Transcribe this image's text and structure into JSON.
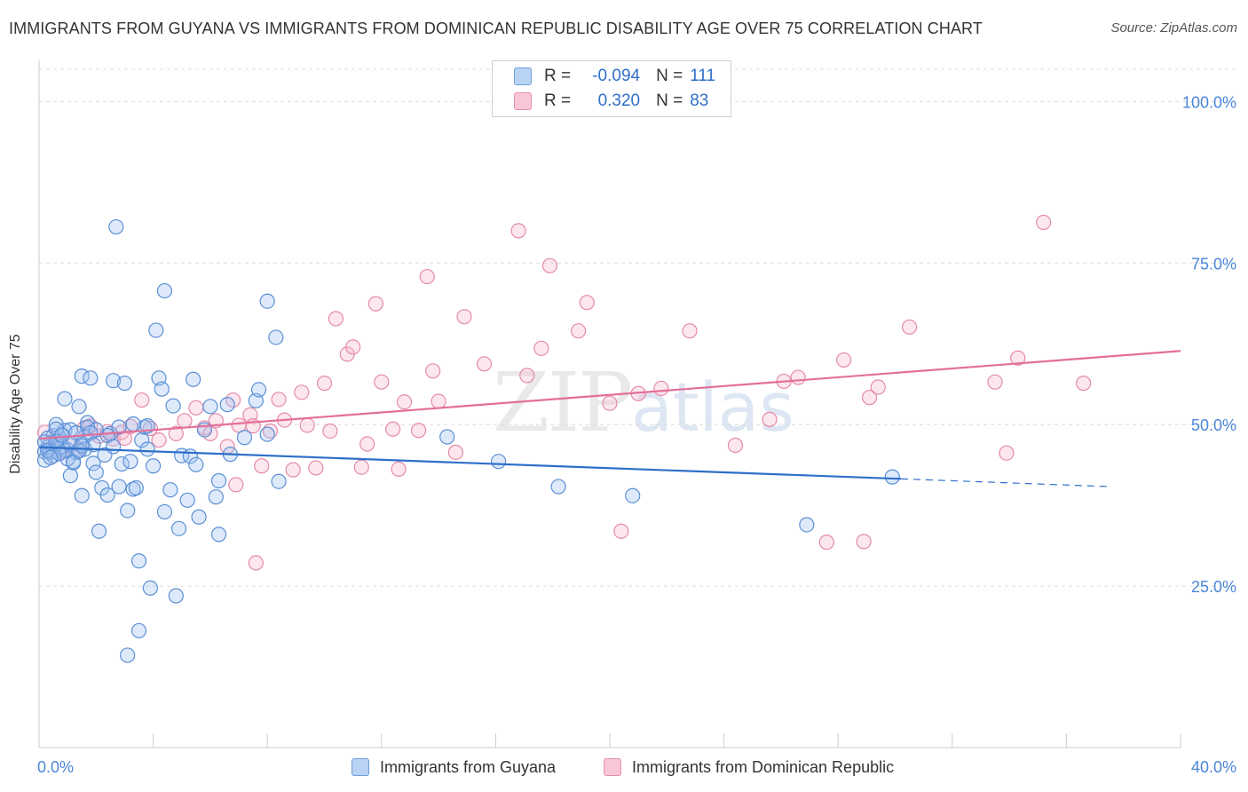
{
  "header": {
    "title": "IMMIGRANTS FROM GUYANA VS IMMIGRANTS FROM DOMINICAN REPUBLIC DISABILITY AGE OVER 75 CORRELATION CHART",
    "source": "Source: ZipAtlas.com"
  },
  "watermark": {
    "part1": "ZIP",
    "part2": "atlas"
  },
  "legend": {
    "rows": [
      {
        "r_label": "R =",
        "r_value": "-0.094",
        "n_label": "N =",
        "n_value": "111",
        "color": "#4a86d9"
      },
      {
        "r_label": "R =",
        "r_value": "0.320",
        "n_label": "N =",
        "n_value": "83",
        "color": "#e36f9a"
      }
    ]
  },
  "bottom_legend": {
    "series1": "Immigrants from Guyana",
    "series2": "Immigrants from Dominican Republic"
  },
  "chart_data": {
    "type": "scatter",
    "title": "IMMIGRANTS FROM GUYANA VS IMMIGRANTS FROM DOMINICAN REPUBLIC DISABILITY AGE OVER 75 CORRELATION CHART",
    "ylabel": "Disability Age Over 75",
    "xlabel": "",
    "xlim": [
      0,
      40
    ],
    "ylim": [
      0,
      105
    ],
    "x_tick_labels": [
      "0.0%",
      "40.0%"
    ],
    "y_ticks": [
      25,
      50,
      75,
      100
    ],
    "y_tick_labels": [
      "25.0%",
      "50.0%",
      "75.0%",
      "100.0%"
    ],
    "grid": "horizontal dashed",
    "colors": {
      "guyana": "#4a86d9",
      "dominican": "#e36f9a"
    },
    "series": [
      {
        "name": "Immigrants from Guyana",
        "trend": {
          "x0": 0,
          "y0": 46.5,
          "x1": 30.2,
          "y1": 41.6,
          "dash_to_x": 37.5,
          "dash_to_y": 40.4
        },
        "points": [
          [
            0.2,
            45.8
          ],
          [
            0.2,
            44.5
          ],
          [
            0.3,
            46.5
          ],
          [
            0.4,
            47.2
          ],
          [
            0.5,
            45.8
          ],
          [
            0.5,
            48.3
          ],
          [
            0.6,
            46.9
          ],
          [
            0.6,
            50.0
          ],
          [
            0.7,
            47.5
          ],
          [
            0.8,
            48.2
          ],
          [
            0.9,
            54.0
          ],
          [
            0.9,
            49.1
          ],
          [
            1.0,
            46.1
          ],
          [
            1.1,
            42.1
          ],
          [
            1.1,
            49.2
          ],
          [
            1.2,
            44.3
          ],
          [
            1.3,
            45.7
          ],
          [
            1.4,
            52.8
          ],
          [
            1.5,
            47.0
          ],
          [
            1.5,
            57.5
          ],
          [
            1.6,
            48.1
          ],
          [
            1.7,
            50.3
          ],
          [
            1.7,
            49.6
          ],
          [
            1.8,
            57.2
          ],
          [
            1.9,
            44.0
          ],
          [
            2.0,
            42.6
          ],
          [
            2.1,
            33.5
          ],
          [
            2.2,
            40.2
          ],
          [
            2.4,
            39.1
          ],
          [
            2.5,
            48.6
          ],
          [
            2.6,
            56.8
          ],
          [
            2.7,
            80.6
          ],
          [
            2.8,
            49.6
          ],
          [
            2.8,
            40.4
          ],
          [
            2.9,
            43.9
          ],
          [
            3.0,
            56.4
          ],
          [
            3.1,
            36.7
          ],
          [
            3.2,
            44.3
          ],
          [
            3.3,
            40.0
          ],
          [
            3.4,
            40.2
          ],
          [
            3.5,
            28.9
          ],
          [
            3.5,
            18.1
          ],
          [
            3.6,
            47.6
          ],
          [
            3.7,
            49.6
          ],
          [
            3.8,
            46.2
          ],
          [
            3.9,
            24.7
          ],
          [
            4.0,
            43.6
          ],
          [
            4.1,
            64.6
          ],
          [
            4.2,
            57.2
          ],
          [
            4.3,
            55.5
          ],
          [
            4.4,
            36.5
          ],
          [
            4.4,
            70.7
          ],
          [
            4.6,
            39.9
          ],
          [
            4.7,
            52.9
          ],
          [
            4.8,
            23.5
          ],
          [
            4.9,
            33.9
          ],
          [
            5.0,
            45.2
          ],
          [
            5.2,
            38.3
          ],
          [
            5.3,
            45.1
          ],
          [
            5.4,
            57.0
          ],
          [
            5.5,
            43.8
          ],
          [
            5.6,
            35.7
          ],
          [
            5.8,
            49.2
          ],
          [
            6.0,
            52.8
          ],
          [
            6.2,
            38.8
          ],
          [
            6.3,
            41.3
          ],
          [
            6.3,
            33.0
          ],
          [
            6.6,
            53.1
          ],
          [
            6.7,
            45.4
          ],
          [
            7.2,
            48.0
          ],
          [
            7.6,
            53.7
          ],
          [
            7.7,
            55.4
          ],
          [
            8.0,
            69.1
          ],
          [
            8.3,
            63.5
          ],
          [
            8.4,
            41.2
          ],
          [
            8.0,
            48.5
          ],
          [
            3.1,
            14.3
          ],
          [
            1.5,
            39.0
          ],
          [
            1.0,
            44.7
          ],
          [
            0.4,
            45.7
          ],
          [
            0.8,
            46.6
          ],
          [
            2.3,
            45.3
          ],
          [
            1.2,
            44.1
          ],
          [
            0.6,
            49.3
          ],
          [
            14.3,
            48.1
          ],
          [
            16.1,
            44.3
          ],
          [
            18.2,
            40.4
          ],
          [
            20.8,
            39.0
          ],
          [
            26.9,
            34.5
          ],
          [
            29.9,
            41.9
          ],
          [
            0.3,
            47.9
          ],
          [
            0.9,
            46.0
          ],
          [
            1.6,
            46.2
          ],
          [
            2.4,
            48.3
          ],
          [
            3.3,
            50.1
          ],
          [
            0.5,
            45.2
          ],
          [
            1.3,
            48.7
          ],
          [
            0.2,
            47.3
          ],
          [
            0.7,
            45.5
          ],
          [
            2.0,
            49.2
          ],
          [
            1.4,
            45.9
          ],
          [
            0.3,
            46.0
          ],
          [
            1.8,
            48.7
          ],
          [
            3.8,
            49.8
          ],
          [
            0.6,
            47.4
          ],
          [
            1.1,
            47.1
          ],
          [
            2.6,
            46.6
          ],
          [
            0.4,
            44.9
          ],
          [
            1.9,
            46.9
          ],
          [
            0.8,
            48.4
          ],
          [
            1.5,
            46.7
          ]
        ]
      },
      {
        "name": "Immigrants from Dominican Republic",
        "trend": {
          "x0": 0,
          "y0": 47.8,
          "x1": 40,
          "y1": 61.4
        },
        "points": [
          [
            0.2,
            48.8
          ],
          [
            0.5,
            46.4
          ],
          [
            0.8,
            45.8
          ],
          [
            1.1,
            47.0
          ],
          [
            1.6,
            49.5
          ],
          [
            1.8,
            49.8
          ],
          [
            2.1,
            48.2
          ],
          [
            2.6,
            47.8
          ],
          [
            2.9,
            48.8
          ],
          [
            3.2,
            49.7
          ],
          [
            3.6,
            53.8
          ],
          [
            3.9,
            49.4
          ],
          [
            4.2,
            47.6
          ],
          [
            4.8,
            48.6
          ],
          [
            5.1,
            50.6
          ],
          [
            5.5,
            52.6
          ],
          [
            5.8,
            49.5
          ],
          [
            6.0,
            48.6
          ],
          [
            6.2,
            50.6
          ],
          [
            6.6,
            46.6
          ],
          [
            6.8,
            53.8
          ],
          [
            6.9,
            40.7
          ],
          [
            7.0,
            49.9
          ],
          [
            7.4,
            51.5
          ],
          [
            7.5,
            49.8
          ],
          [
            7.6,
            28.6
          ],
          [
            7.8,
            43.6
          ],
          [
            8.1,
            49.0
          ],
          [
            8.4,
            53.9
          ],
          [
            8.6,
            50.7
          ],
          [
            8.9,
            43.0
          ],
          [
            9.2,
            55.0
          ],
          [
            9.4,
            49.9
          ],
          [
            9.7,
            43.3
          ],
          [
            10.0,
            56.4
          ],
          [
            10.2,
            49.0
          ],
          [
            10.4,
            66.4
          ],
          [
            10.8,
            60.9
          ],
          [
            11.0,
            62.0
          ],
          [
            11.3,
            43.4
          ],
          [
            11.5,
            47.0
          ],
          [
            11.8,
            68.7
          ],
          [
            12.0,
            56.6
          ],
          [
            12.4,
            49.3
          ],
          [
            12.6,
            43.1
          ],
          [
            12.8,
            53.5
          ],
          [
            13.3,
            49.1
          ],
          [
            13.6,
            72.9
          ],
          [
            13.8,
            58.3
          ],
          [
            14.0,
            53.6
          ],
          [
            14.6,
            45.7
          ],
          [
            14.9,
            66.7
          ],
          [
            15.6,
            59.4
          ],
          [
            16.8,
            80.0
          ],
          [
            17.1,
            57.6
          ],
          [
            17.6,
            61.8
          ],
          [
            17.9,
            74.6
          ],
          [
            18.9,
            64.5
          ],
          [
            19.2,
            68.9
          ],
          [
            20.0,
            53.3
          ],
          [
            20.4,
            33.5
          ],
          [
            21.0,
            54.8
          ],
          [
            21.8,
            55.6
          ],
          [
            22.8,
            64.5
          ],
          [
            24.4,
            46.8
          ],
          [
            25.6,
            50.8
          ],
          [
            26.1,
            56.7
          ],
          [
            26.6,
            57.3
          ],
          [
            27.6,
            31.8
          ],
          [
            28.2,
            60.0
          ],
          [
            28.9,
            31.9
          ],
          [
            29.1,
            54.2
          ],
          [
            29.4,
            55.8
          ],
          [
            30.5,
            65.1
          ],
          [
            33.5,
            56.6
          ],
          [
            33.9,
            45.6
          ],
          [
            34.3,
            60.3
          ],
          [
            35.2,
            81.3
          ],
          [
            36.6,
            56.4
          ],
          [
            0.4,
            46.9
          ],
          [
            1.4,
            46.1
          ],
          [
            2.4,
            48.9
          ],
          [
            3.0,
            47.9
          ]
        ]
      }
    ]
  }
}
